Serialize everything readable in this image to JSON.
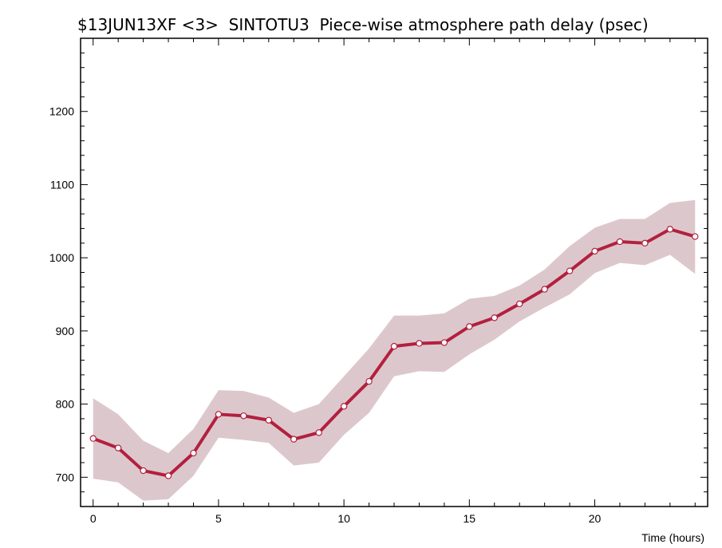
{
  "chart_data": {
    "type": "line",
    "title": "$13JUN13XF <3>  SINTOTU3  Piece-wise atmosphere path delay (psec)",
    "xlabel": "Time (hours)",
    "ylabel": "",
    "xlim": [
      -0.5,
      24.5
    ],
    "ylim": [
      660,
      1300
    ],
    "x_ticks": [
      0,
      5,
      10,
      15,
      20
    ],
    "y_ticks": [
      700,
      800,
      900,
      1000,
      1100,
      1200
    ],
    "x_minor_step": 1,
    "y_minor_step": 20,
    "grid": false,
    "legend": "none",
    "colors": {
      "line": "#b3203f",
      "band": "#dcc8cc",
      "marker_fill": "#ffffff"
    },
    "series": [
      {
        "x": [
          0,
          1,
          2,
          3,
          4,
          5,
          6,
          7,
          8,
          9,
          10,
          11,
          12,
          13,
          14,
          15,
          16,
          17,
          18,
          19,
          20,
          21,
          22,
          23,
          24
        ],
        "values": [
          753,
          740,
          709,
          702,
          733,
          786,
          784,
          778,
          752,
          761,
          797,
          831,
          879,
          883,
          884,
          906,
          918,
          937,
          957,
          982,
          1009,
          1022,
          1020,
          1039,
          1029
        ],
        "lower": [
          698,
          693,
          668,
          670,
          702,
          754,
          751,
          747,
          716,
          720,
          758,
          788,
          838,
          845,
          844,
          868,
          888,
          913,
          932,
          950,
          979,
          993,
          990,
          1004,
          978
        ],
        "upper": [
          808,
          786,
          750,
          733,
          766,
          819,
          818,
          809,
          788,
          800,
          838,
          876,
          921,
          921,
          924,
          944,
          948,
          962,
          984,
          1016,
          1041,
          1053,
          1053,
          1075,
          1079
        ]
      }
    ]
  }
}
